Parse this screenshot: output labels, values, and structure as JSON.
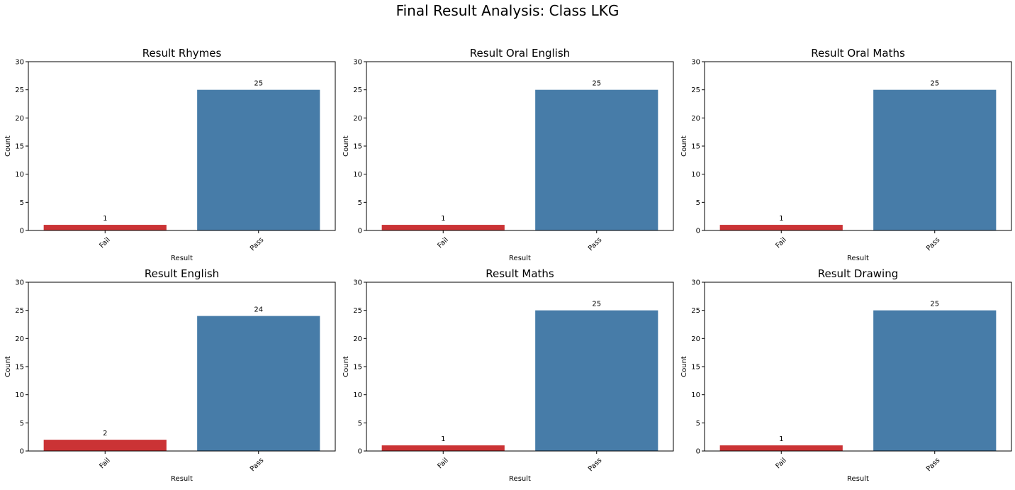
{
  "figure_title": "Final Result Analysis: Class LKG",
  "colors": {
    "fail": "#cb3335",
    "pass": "#477ca8",
    "axis": "#000000",
    "background": "#ffffff"
  },
  "chart_data": [
    {
      "type": "bar",
      "title": "Result Rhymes",
      "xlabel": "Result",
      "ylabel": "Count",
      "categories": [
        "Fail",
        "Pass"
      ],
      "values": [
        1,
        25
      ],
      "ylim": [
        0,
        30
      ],
      "yticks": [
        0,
        5,
        10,
        15,
        20,
        25,
        30
      ],
      "grid": false
    },
    {
      "type": "bar",
      "title": "Result Oral English",
      "xlabel": "Result",
      "ylabel": "Count",
      "categories": [
        "Fail",
        "Pass"
      ],
      "values": [
        1,
        25
      ],
      "ylim": [
        0,
        30
      ],
      "yticks": [
        0,
        5,
        10,
        15,
        20,
        25,
        30
      ],
      "grid": false
    },
    {
      "type": "bar",
      "title": "Result Oral Maths",
      "xlabel": "Result",
      "ylabel": "Count",
      "categories": [
        "Fail",
        "Pass"
      ],
      "values": [
        1,
        25
      ],
      "ylim": [
        0,
        30
      ],
      "yticks": [
        0,
        5,
        10,
        15,
        20,
        25,
        30
      ],
      "grid": false
    },
    {
      "type": "bar",
      "title": "Result English",
      "xlabel": "Result",
      "ylabel": "Count",
      "categories": [
        "Fail",
        "Pass"
      ],
      "values": [
        2,
        24
      ],
      "ylim": [
        0,
        30
      ],
      "yticks": [
        0,
        5,
        10,
        15,
        20,
        25,
        30
      ],
      "grid": false
    },
    {
      "type": "bar",
      "title": "Result Maths",
      "xlabel": "Result",
      "ylabel": "Count",
      "categories": [
        "Fail",
        "Pass"
      ],
      "values": [
        1,
        25
      ],
      "ylim": [
        0,
        30
      ],
      "yticks": [
        0,
        5,
        10,
        15,
        20,
        25,
        30
      ],
      "grid": false
    },
    {
      "type": "bar",
      "title": "Result Drawing",
      "xlabel": "Result",
      "ylabel": "Count",
      "categories": [
        "Fail",
        "Pass"
      ],
      "values": [
        1,
        25
      ],
      "ylim": [
        0,
        30
      ],
      "yticks": [
        0,
        5,
        10,
        15,
        20,
        25,
        30
      ],
      "grid": false
    }
  ]
}
